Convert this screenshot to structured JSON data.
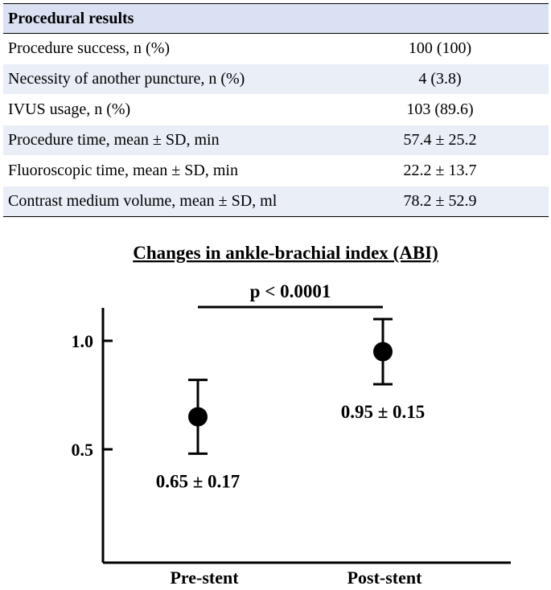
{
  "table": {
    "header": "Procedural results",
    "rows": [
      {
        "label": "Procedure success, n (%)",
        "value": "100 (100)"
      },
      {
        "label": "Necessity of another puncture, n (%)",
        "value": "4 (3.8)"
      },
      {
        "label": "IVUS usage, n (%)",
        "value": "103 (89.6)"
      },
      {
        "label": "Procedure time, mean ± SD, min",
        "value": "57.4 ± 25.2"
      },
      {
        "label": "Fluoroscopic time, mean ± SD, min",
        "value": "22.2 ± 13.7"
      },
      {
        "label": "Contrast medium volume, mean ± SD, ml",
        "value": "78.2 ± 52.9"
      }
    ]
  },
  "chart_data": {
    "type": "scatter",
    "title": "Changes in ankle-brachial index (ABI)",
    "categories": [
      "Pre-stent",
      "Post-stent"
    ],
    "means": [
      0.65,
      0.95
    ],
    "sd": [
      0.17,
      0.15
    ],
    "value_labels": [
      "0.65 ± 0.17",
      "0.95 ± 0.15"
    ],
    "yticks": [
      0.5,
      1.0
    ],
    "ytick_labels": [
      "0.5",
      "1.0"
    ],
    "ylim": [
      0.0,
      1.1
    ],
    "significance": "p < 0.0001",
    "grid": false
  }
}
